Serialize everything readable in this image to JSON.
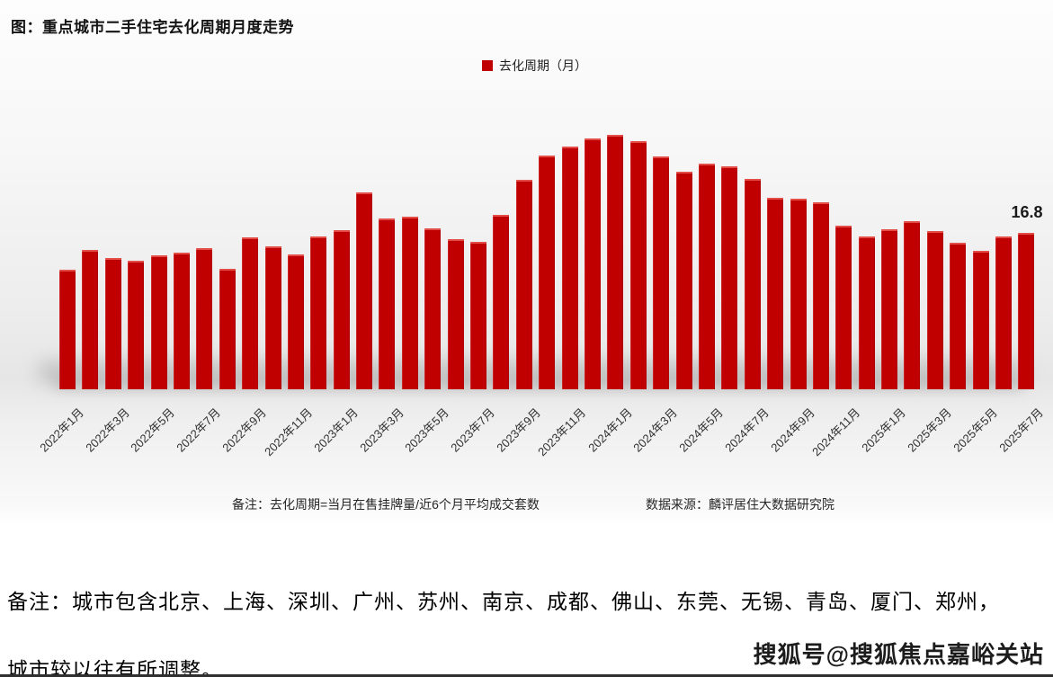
{
  "chart": {
    "title": "图：重点城市二手住宅去化周期月度走势",
    "legend_label": "去化周期（月）",
    "bar_color": "#C00000",
    "last_value_label": "16.8",
    "footnote": "备注：去化周期=当月在售挂牌量/近6个月平均成交套数",
    "source": "数据来源：麟评居住大数据研究院"
  },
  "chart_data": {
    "type": "bar",
    "title": "图：重点城市二手住宅去化周期月度走势",
    "series_name": "去化周期（月）",
    "x": [
      "2022年1月",
      "2022年2月",
      "2022年3月",
      "2022年4月",
      "2022年5月",
      "2022年6月",
      "2022年7月",
      "2022年8月",
      "2022年9月",
      "2022年10月",
      "2022年11月",
      "2022年12月",
      "2023年1月",
      "2023年2月",
      "2023年3月",
      "2023年4月",
      "2023年5月",
      "2023年6月",
      "2023年7月",
      "2023年8月",
      "2023年9月",
      "2023年10月",
      "2023年11月",
      "2023年12月",
      "2024年1月",
      "2024年2月",
      "2024年3月",
      "2024年4月",
      "2024年5月",
      "2024年6月",
      "2024年7月",
      "2024年8月",
      "2024年9月",
      "2024年10月",
      "2024年11月",
      "2024年12月",
      "2025年1月",
      "2025年2月",
      "2025年3月",
      "2025年4月",
      "2025年5月",
      "2025年6月",
      "2025年7月"
    ],
    "values": [
      12.9,
      15.0,
      14.1,
      13.8,
      14.4,
      14.7,
      15.2,
      13.0,
      16.4,
      15.4,
      14.5,
      16.5,
      17.1,
      21.2,
      18.4,
      18.6,
      17.3,
      16.2,
      15.9,
      18.8,
      22.6,
      25.2,
      26.1,
      27.0,
      27.4,
      26.7,
      25.1,
      23.4,
      24.3,
      24.0,
      22.7,
      20.6,
      20.5,
      20.1,
      17.6,
      16.5,
      17.2,
      18.1,
      17.0,
      15.8,
      14.9,
      16.5,
      16.8
    ],
    "x_tick_labels": [
      "2022年1月",
      "2022年3月",
      "2022年5月",
      "2022年7月",
      "2022年9月",
      "2022年11月",
      "2023年1月",
      "2023年3月",
      "2023年5月",
      "2023年7月",
      "2023年9月",
      "2023年11月",
      "2024年1月",
      "2024年3月",
      "2024年5月",
      "2024年7月",
      "2024年9月",
      "2024年11月",
      "2025年1月",
      "2025年3月",
      "2025年5月",
      "2025年7月"
    ],
    "ylim": [
      0,
      28
    ],
    "grid": false,
    "legend_position": "top-center",
    "annotation": {
      "x": "2025年7月",
      "text": "16.8"
    }
  },
  "footer": {
    "note_line1": "备注：城市包含北京、上海、深圳、广州、苏州、南京、成都、佛山、东莞、无锡、青岛、厦门、郑州，",
    "note_line2": "城市较以往有所调整。",
    "watermark": "搜狐号@搜狐焦点嘉峪关站"
  }
}
